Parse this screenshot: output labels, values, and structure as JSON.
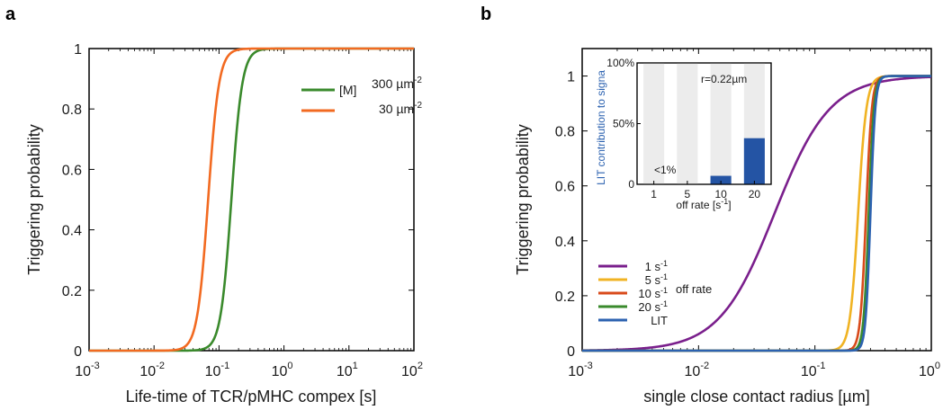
{
  "chart_data": [
    {
      "panel": "a",
      "type": "line",
      "xscale": "log",
      "xlim": [
        0.001,
        100
      ],
      "ylim": [
        0,
        1
      ],
      "xlabel": "Life-time of TCR/pMHC compex [s]",
      "ylabel": "Triggering probability",
      "xticks": [
        "10",
        "10",
        "10",
        "10",
        "10",
        "10"
      ],
      "xtick_exponents": [
        "-3",
        "-2",
        "-1",
        "0",
        "1",
        "2"
      ],
      "yticks": [
        "0",
        "0.2",
        "0.4",
        "0.6",
        "0.8",
        "1"
      ],
      "legend": {
        "prefix": "[M]",
        "placement": "top-right"
      },
      "series": [
        {
          "name": "300 µm",
          "name_exp": "-2",
          "color": "#3a8a2c",
          "midpoint_x": 0.155,
          "steepness": 12,
          "curve": "logistic in log10(x)"
        },
        {
          "name": "30 µm",
          "name_exp": "-2",
          "color": "#f26a21",
          "midpoint_x": 0.068,
          "steepness": 12,
          "curve": "logistic in log10(x)"
        }
      ]
    },
    {
      "panel": "b",
      "type": "line",
      "xscale": "log",
      "xlim": [
        0.001,
        1
      ],
      "ylim": [
        0,
        1.1
      ],
      "xlabel": "single close contact radius [µm]",
      "ylabel": "Triggering probability",
      "xticks": [
        "10",
        "10",
        "10",
        "10"
      ],
      "xtick_exponents": [
        "-3",
        "-2",
        "-1",
        "0"
      ],
      "yticks": [
        "0",
        "0.2",
        "0.4",
        "0.6",
        "0.8",
        "1"
      ],
      "legend": {
        "title": "off rate",
        "placement": "bottom-left"
      },
      "series": [
        {
          "name": "1 s",
          "name_exp": "-1",
          "color": "#7a1f8c",
          "midpoint_x": 0.045,
          "steepness": 4.2,
          "curve": "logistic in log10(x)"
        },
        {
          "name": "5 s",
          "name_exp": "-1",
          "color": "#f0b323",
          "midpoint_x": 0.235,
          "steepness": 28,
          "curve": "logistic in log10(x)"
        },
        {
          "name": "10 s",
          "name_exp": "-1",
          "color": "#d84a1b",
          "midpoint_x": 0.275,
          "steepness": 40,
          "curve": "logistic in log10(x)"
        },
        {
          "name": "20 s",
          "name_exp": "-1",
          "color": "#3a8a2c",
          "midpoint_x": 0.29,
          "steepness": 45,
          "curve": "logistic in log10(x)"
        },
        {
          "name": "LIT",
          "name_exp": "",
          "color": "#2c62b0",
          "midpoint_x": 0.3,
          "steepness": 48,
          "curve": "logistic in log10(x)"
        }
      ],
      "inset": {
        "type": "bar",
        "ylabel": "LIT contribution to signa",
        "xlabel": "off rate [s",
        "xlabel_exp": "-1",
        "xlabel_suffix": "]",
        "annotation": "r=0.22µm",
        "small_label": "<1%",
        "categories": [
          "1",
          "5",
          "10",
          "20"
        ],
        "values": [
          0,
          0,
          7,
          38
        ],
        "ylim": [
          0,
          100
        ],
        "yticks": [
          "0",
          "50%",
          "100%"
        ],
        "bar_color": "#2454a4",
        "background_bar_color": "#ececec"
      }
    }
  ],
  "panels": {
    "a": "a",
    "b": "b"
  }
}
